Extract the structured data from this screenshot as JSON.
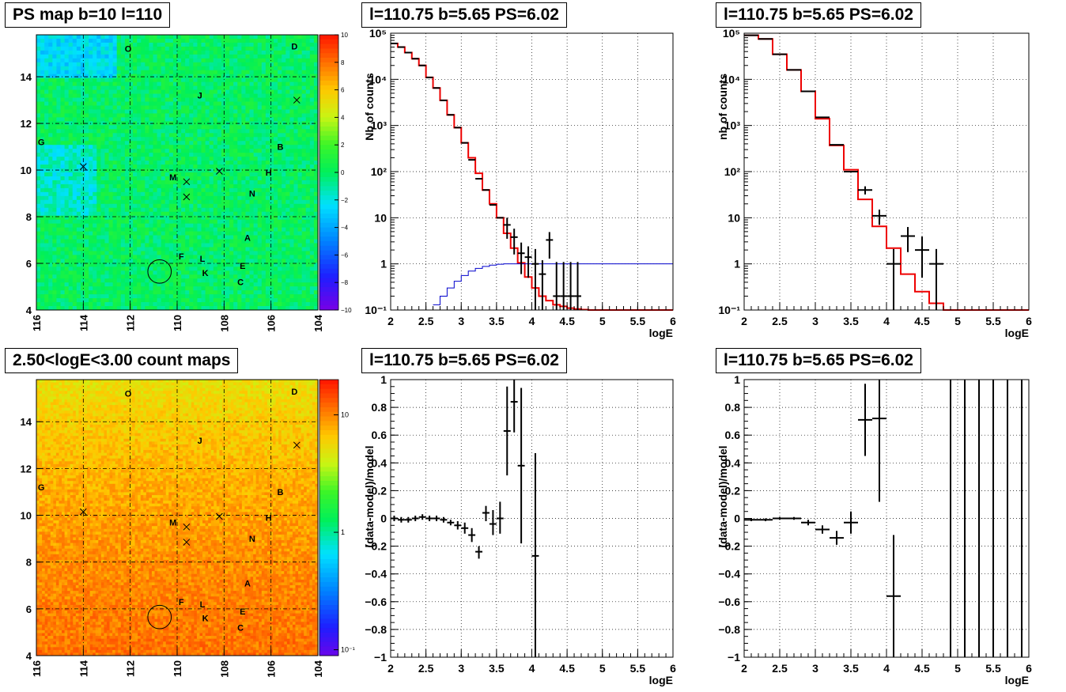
{
  "panels": {
    "ps_map": {
      "title": "PS map b=10 l=110"
    },
    "count_map": {
      "title": "2.50<logE<3.00 count maps"
    },
    "spec1": {
      "title": "l=110.75 b=5.65 PS=6.02"
    },
    "spec2": {
      "title": "l=110.75 b=5.65 PS=6.02"
    },
    "res1": {
      "title": "l=110.75 b=5.65 PS=6.02"
    },
    "res2": {
      "title": "l=110.75 b=5.65 PS=6.02"
    }
  },
  "colors": {
    "data": "#000000",
    "model": "#ee0000",
    "aux": "#0000cc",
    "grid": "#000000"
  },
  "chart_data": [
    {
      "id": "ps_map",
      "type": "heatmap",
      "title": "PS map b=10 l=110",
      "xlabel": "",
      "ylabel": "",
      "xlim": [
        116,
        104
      ],
      "ylim": [
        4,
        15.8
      ],
      "xticks": [
        116,
        114,
        112,
        110,
        108,
        106,
        104
      ],
      "yticks": [
        4,
        6,
        8,
        10,
        12,
        14
      ],
      "zlim": [
        -10,
        10
      ],
      "zticks": [
        -10,
        -8,
        -6,
        -4,
        -2,
        0,
        2,
        4,
        6,
        8,
        10
      ],
      "colorscale": "rainbow",
      "dominant_value": 0,
      "sources": [
        {
          "label": "O",
          "l": 112.1,
          "b": 15.2
        },
        {
          "label": "D",
          "l": 105.0,
          "b": 15.3
        },
        {
          "label": "J",
          "l": 109.0,
          "b": 13.2
        },
        {
          "label": "G",
          "l": 115.8,
          "b": 11.2
        },
        {
          "label": "B",
          "l": 105.6,
          "b": 11.0
        },
        {
          "label": "H",
          "l": 106.1,
          "b": 9.9
        },
        {
          "label": "M",
          "l": 110.2,
          "b": 9.7
        },
        {
          "label": "N",
          "l": 106.8,
          "b": 9.0
        },
        {
          "label": "A",
          "l": 107.0,
          "b": 7.1
        },
        {
          "label": "F",
          "l": 109.8,
          "b": 6.3
        },
        {
          "label": "L",
          "l": 108.9,
          "b": 6.2
        },
        {
          "label": "E",
          "l": 107.2,
          "b": 5.9
        },
        {
          "label": "K",
          "l": 108.8,
          "b": 5.6
        },
        {
          "label": "C",
          "l": 107.3,
          "b": 5.2
        }
      ],
      "crosses": [
        {
          "l": 114.0,
          "b": 10.15
        },
        {
          "l": 109.6,
          "b": 9.5
        },
        {
          "l": 109.6,
          "b": 8.85
        },
        {
          "l": 108.2,
          "b": 9.95
        },
        {
          "l": 104.9,
          "b": 13.0
        }
      ],
      "circle": {
        "l": 110.75,
        "b": 5.65,
        "r": 0.5
      }
    },
    {
      "id": "count_map",
      "type": "heatmap",
      "title": "2.50<logE<3.00 count maps",
      "xlabel": "",
      "ylabel": "",
      "xlim": [
        116,
        104
      ],
      "ylim": [
        4,
        15.8
      ],
      "xticks": [
        116,
        114,
        112,
        110,
        108,
        106,
        104
      ],
      "yticks": [
        4,
        6,
        8,
        10,
        12,
        14
      ],
      "zscale": "log",
      "zticklabels": [
        "10",
        "1",
        "10⁻¹"
      ],
      "zticks": [
        10,
        1,
        0.1
      ],
      "colorscale": "rainbow",
      "value_range_by_b": [
        [
          4,
          20
        ],
        [
          15.8,
          7
        ]
      ],
      "sources_ref": "ps_map"
    },
    {
      "id": "spec1",
      "type": "line",
      "title": "l=110.75 b=5.65 PS=6.02",
      "xlabel": "logE",
      "ylabel": "Nb of counts",
      "xlim": [
        2,
        6
      ],
      "ylim": [
        0.1,
        100000
      ],
      "yscale": "log",
      "xticks": [
        2,
        2.5,
        3,
        3.5,
        4,
        4.5,
        5,
        5.5,
        6
      ],
      "yticklabels": [
        "10⁻¹",
        "1",
        "10",
        "10²",
        "10³",
        "10⁴",
        "10⁵"
      ],
      "grid": true,
      "series": [
        {
          "style": "step",
          "color": "#ee0000",
          "edges": [
            2.0,
            2.1,
            2.2,
            2.3,
            2.4,
            2.5,
            2.6,
            2.7,
            2.8,
            2.9,
            3.0,
            3.1,
            3.2,
            3.3,
            3.4,
            3.5,
            3.6,
            3.7,
            3.8,
            3.9,
            4.0,
            4.1,
            4.2,
            4.3,
            4.4,
            4.5,
            4.6,
            4.7,
            4.8,
            6.0
          ],
          "values": [
            60000,
            50000,
            38000,
            28000,
            20000,
            11000,
            6500,
            3500,
            1700,
            900,
            420,
            200,
            92,
            40,
            20,
            10,
            4.6,
            2.2,
            1.05,
            0.52,
            0.3,
            0.2,
            0.16,
            0.13,
            0.12,
            0.11,
            0.105,
            0.102,
            0.1
          ]
        },
        {
          "style": "step",
          "color": "#0000cc",
          "edges": [
            2.6,
            2.7,
            2.8,
            2.9,
            3.0,
            3.1,
            3.2,
            3.3,
            3.4,
            3.5,
            3.6,
            4.0,
            6.0
          ],
          "values": [
            0.13,
            0.2,
            0.3,
            0.42,
            0.56,
            0.7,
            0.8,
            0.88,
            0.94,
            0.98,
            1.0,
            1.0
          ]
        },
        {
          "style": "errorbar",
          "color": "#000000",
          "x": [
            2.05,
            2.15,
            2.25,
            2.35,
            2.45,
            2.55,
            2.65,
            2.75,
            2.85,
            2.95,
            3.05,
            3.15,
            3.25,
            3.35,
            3.45,
            3.55,
            3.65,
            3.75,
            3.85,
            3.95,
            4.05,
            4.15,
            4.25,
            4.35,
            4.45,
            4.55,
            4.65
          ],
          "xerr": 0.05,
          "y": [
            60000,
            50000,
            38000,
            28000,
            20000,
            11000,
            6500,
            3500,
            1700,
            900,
            420,
            180,
            70,
            40,
            19,
            10,
            7,
            3.8,
            1.7,
            1.4,
            1,
            0.6,
            3.3,
            0.2,
            0.2,
            0.2,
            0.2
          ],
          "yerr_low": [
            0,
            0,
            0,
            0,
            0,
            0,
            0,
            0,
            0,
            0,
            0,
            0,
            0,
            0,
            0,
            0,
            3.5,
            2.2,
            1.1,
            0.9,
            0.99,
            0.5,
            2.0,
            0.19,
            0.19,
            0.19,
            0.19
          ],
          "yerr_high": [
            0,
            0,
            0,
            0,
            0,
            0,
            0,
            0,
            0,
            0,
            0,
            0,
            0,
            0,
            0,
            0,
            3,
            2,
            1.2,
            1,
            1.1,
            0.6,
            1.6,
            0.9,
            0.9,
            0.9,
            0.9
          ]
        }
      ]
    },
    {
      "id": "spec2",
      "type": "line",
      "title": "l=110.75 b=5.65 PS=6.02",
      "xlabel": "logE",
      "ylabel": "nb of counts",
      "xlim": [
        2,
        6
      ],
      "ylim": [
        0.1,
        100000
      ],
      "yscale": "log",
      "xticks": [
        2,
        2.5,
        3,
        3.5,
        4,
        4.5,
        5,
        5.5,
        6
      ],
      "yticklabels": [
        "10⁻¹",
        "1",
        "10",
        "10²",
        "10³",
        "10⁴",
        "10⁵"
      ],
      "grid": true,
      "series": [
        {
          "style": "step",
          "color": "#ee0000",
          "edges": [
            2.0,
            2.2,
            2.4,
            2.6,
            2.8,
            3.0,
            3.2,
            3.4,
            3.6,
            3.8,
            4.0,
            4.2,
            4.4,
            4.6,
            4.8,
            6.0
          ],
          "values": [
            90000,
            75000,
            35000,
            16000,
            5500,
            1400,
            370,
            110,
            25,
            6.5,
            2.2,
            0.6,
            0.25,
            0.14,
            0.1
          ]
        },
        {
          "style": "errorbar",
          "color": "#000000",
          "x": [
            2.1,
            2.3,
            2.5,
            2.7,
            2.9,
            3.1,
            3.3,
            3.5,
            3.7,
            3.9,
            4.1,
            4.3,
            4.5,
            4.7
          ],
          "xerr": 0.1,
          "y": [
            90000,
            75000,
            35000,
            16000,
            5500,
            1500,
            380,
            100,
            40,
            11,
            1,
            4,
            2,
            1
          ],
          "yerr_low": [
            0,
            0,
            0,
            0,
            0,
            0,
            0,
            0,
            8,
            4,
            0.99,
            2.2,
            1.5,
            0.99
          ],
          "yerr_high": [
            0,
            0,
            0,
            0,
            0,
            0,
            0,
            0,
            8,
            4,
            1.1,
            2.3,
            1.9,
            1.1
          ]
        }
      ]
    },
    {
      "id": "res1",
      "type": "scatter",
      "title": "l=110.75 b=5.65 PS=6.02",
      "xlabel": "logE",
      "ylabel": "(data-model)/model",
      "xlim": [
        2,
        6
      ],
      "ylim": [
        -1,
        1
      ],
      "xticks": [
        2,
        2.5,
        3,
        3.5,
        4,
        4.5,
        5,
        5.5,
        6
      ],
      "yticks": [
        -1,
        -0.8,
        -0.6,
        -0.4,
        -0.2,
        0,
        0.2,
        0.4,
        0.6,
        0.8,
        1
      ],
      "yticklabels": [
        "−1",
        "−0.8",
        "−0.6",
        "−0.4",
        "−0.2",
        "0",
        "0.2",
        "0.4",
        "0.6",
        "0.8",
        "1"
      ],
      "grid": true,
      "series": [
        {
          "style": "errorbar",
          "color": "#000000",
          "x": [
            2.05,
            2.15,
            2.25,
            2.35,
            2.45,
            2.55,
            2.65,
            2.75,
            2.85,
            2.95,
            3.05,
            3.15,
            3.25,
            3.35,
            3.45,
            3.55,
            3.65,
            3.75,
            3.85,
            4.05
          ],
          "xerr": 0.05,
          "y": [
            0,
            -0.01,
            -0.01,
            0,
            0.01,
            0,
            0,
            -0.01,
            -0.03,
            -0.05,
            -0.07,
            -0.12,
            -0.24,
            0.04,
            -0.04,
            0,
            0.63,
            0.84,
            0.38,
            -0.27
          ],
          "yerr_low": [
            0.02,
            0.02,
            0.02,
            0.02,
            0.02,
            0.02,
            0.02,
            0.02,
            0.02,
            0.03,
            0.04,
            0.05,
            0.05,
            0.06,
            0.08,
            0.11,
            0.32,
            0.22,
            0.56,
            0.73
          ],
          "yerr_high": [
            0.02,
            0.02,
            0.02,
            0.02,
            0.02,
            0.02,
            0.02,
            0.02,
            0.02,
            0.03,
            0.04,
            0.05,
            0.04,
            0.05,
            0.1,
            0.12,
            0.32,
            0.3,
            0.56,
            0.74
          ]
        }
      ]
    },
    {
      "id": "res2",
      "type": "scatter",
      "title": "l=110.75 b=5.65 PS=6.02",
      "xlabel": "logE",
      "ylabel": "(data-model)/model",
      "xlim": [
        2,
        6
      ],
      "ylim": [
        -1,
        1
      ],
      "xticks": [
        2,
        2.5,
        3,
        3.5,
        4,
        4.5,
        5,
        5.5,
        6
      ],
      "yticks": [
        -1,
        -0.8,
        -0.6,
        -0.4,
        -0.2,
        0,
        0.2,
        0.4,
        0.6,
        0.8,
        1
      ],
      "yticklabels": [
        "−1",
        "−0.8",
        "−0.6",
        "−0.4",
        "−0.2",
        "0",
        "0.2",
        "0.4",
        "0.6",
        "0.8",
        "1"
      ],
      "grid": true,
      "series": [
        {
          "style": "errorbar",
          "color": "#000000",
          "x": [
            2.1,
            2.3,
            2.5,
            2.7,
            2.9,
            3.1,
            3.3,
            3.5,
            3.7,
            3.9,
            4.1
          ],
          "xerr": 0.1,
          "y": [
            -0.01,
            -0.01,
            0,
            0,
            -0.03,
            -0.08,
            -0.14,
            -0.03,
            0.71,
            0.72,
            -0.56
          ],
          "yerr_low": [
            0.01,
            0.01,
            0.01,
            0.01,
            0.02,
            0.03,
            0.05,
            0.08,
            0.26,
            0.6,
            0.44
          ],
          "yerr_high": [
            0.01,
            0.01,
            0.01,
            0.01,
            0.02,
            0.03,
            0.05,
            0.08,
            0.26,
            0.28,
            0.44
          ]
        },
        {
          "style": "vlines",
          "color": "#000000",
          "x": [
            4.9,
            5.1,
            5.3,
            5.5,
            5.7,
            5.9
          ]
        }
      ]
    }
  ]
}
